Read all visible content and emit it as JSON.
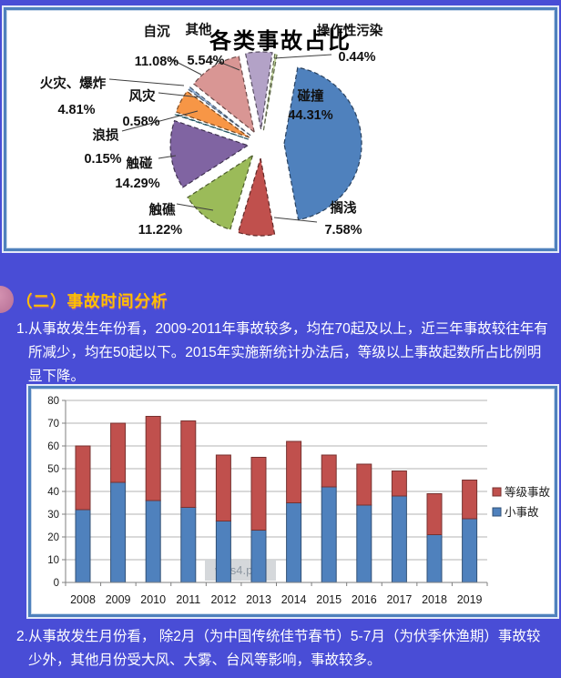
{
  "page": {
    "background_color": "#494dd6"
  },
  "heading": {
    "text": "（二）事故时间分析",
    "color": "#ffc000"
  },
  "items": [
    {
      "marker": "1.",
      "text": "从事故发生年份看，2009-2011年事故较多，均在70起及以上，近三年事故较往年有所减少，均在50起以下。2015年实施新统计办法后，等级以上事故起数所占比例明显下降。"
    },
    {
      "marker": "2.",
      "text": "从事故发生月份看， 除2月（为中国传统佳节春节）5-7月（为伏季休渔期）事故较少外，其他月份受大风、大雾、台风等影响，事故较多。"
    }
  ],
  "watermark_label": "wps4.png",
  "chart_data": [
    {
      "type": "pie",
      "title": "各类事故占比",
      "slices": [
        {
          "label": "碰撞",
          "value": 44.31,
          "color": "#4f81bd"
        },
        {
          "label": "搁浅",
          "value": 7.58,
          "color": "#c0504d"
        },
        {
          "label": "触礁",
          "value": 11.22,
          "color": "#9bbb59"
        },
        {
          "label": "触碰",
          "value": 14.29,
          "color": "#8064a2"
        },
        {
          "label": "浪损",
          "value": 0.15,
          "color": "#4bacc6"
        },
        {
          "label": "火灾、爆炸",
          "value": 4.81,
          "color": "#f79646"
        },
        {
          "label": "风灾",
          "value": 0.58,
          "color": "#95b3d7"
        },
        {
          "label": "自沉",
          "value": 11.08,
          "color": "#d99694"
        },
        {
          "label": "其他",
          "value": 5.54,
          "color": "#b3a2c7"
        },
        {
          "label": "操作性污染",
          "value": 0.44,
          "color": "#c3d69b"
        }
      ]
    },
    {
      "type": "bar",
      "stacked": true,
      "categories": [
        "2008",
        "2009",
        "2010",
        "2011",
        "2012",
        "2013",
        "2014",
        "2015",
        "2016",
        "2017",
        "2018",
        "2019"
      ],
      "series": [
        {
          "name": "小事故",
          "color": "#4f81bd",
          "values": [
            32,
            44,
            36,
            33,
            27,
            23,
            35,
            42,
            34,
            38,
            21,
            28
          ]
        },
        {
          "name": "等级事故",
          "color": "#c0504d",
          "values": [
            28,
            26,
            37,
            38,
            29,
            32,
            27,
            14,
            18,
            11,
            18,
            17
          ]
        }
      ],
      "ylim": [
        0,
        80
      ],
      "ytick_step": 10,
      "grid": true,
      "legend_position": "right",
      "axis_color": "#7f7f7f",
      "grid_color": "#b3b3b3"
    }
  ]
}
